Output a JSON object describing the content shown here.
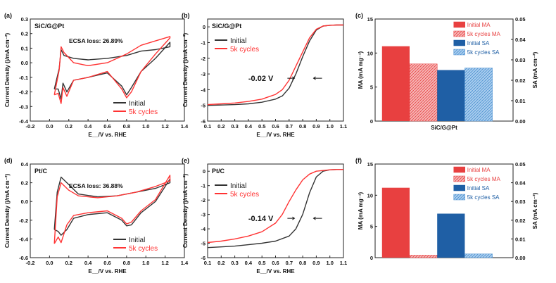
{
  "chart_data": [
    {
      "panel": "(a)",
      "type": "line",
      "sample": "SiC/G@Pt",
      "annotation": "ECSA loss: 26.89%",
      "xlabel": "E__/V vs. RHE",
      "ylabel": "Current Density (j/mA cm⁻²)",
      "xlim": [
        -0.2,
        1.4
      ],
      "ylim": [
        -0.4,
        0.3
      ],
      "xticks": [
        "-0.2",
        "0.0",
        "0.2",
        "0.4",
        "0.6",
        "0.8",
        "1.0",
        "1.2",
        "1.4"
      ],
      "yticks": [
        "-0.4",
        "-0.3",
        "-0.2",
        "-0.1",
        "0.0",
        "0.1",
        "0.2",
        "0.3"
      ],
      "legend": [
        "Initial",
        "5k cycles"
      ],
      "series": [
        {
          "name": "Initial",
          "color": "#333333",
          "x": [
            0.05,
            0.1,
            0.12,
            0.15,
            0.25,
            0.4,
            0.6,
            0.8,
            0.95,
            1.1,
            1.25,
            1.25,
            1.1,
            0.95,
            0.85,
            0.8,
            0.75,
            0.6,
            0.4,
            0.25,
            0.18,
            0.14,
            0.12,
            0.09,
            0.05
          ],
          "y": [
            -0.18,
            -0.04,
            0.09,
            0.05,
            0.03,
            0.02,
            0.03,
            0.05,
            0.08,
            0.09,
            0.11,
            0.14,
            0.03,
            -0.06,
            -0.17,
            -0.22,
            -0.16,
            -0.07,
            -0.1,
            -0.12,
            -0.2,
            -0.14,
            -0.25,
            -0.18,
            -0.18
          ]
        },
        {
          "name": "5k cycles",
          "color": "#ff3333",
          "x": [
            0.05,
            0.1,
            0.12,
            0.15,
            0.25,
            0.4,
            0.6,
            0.8,
            0.95,
            1.1,
            1.25,
            1.25,
            1.1,
            0.95,
            0.85,
            0.8,
            0.75,
            0.6,
            0.4,
            0.25,
            0.18,
            0.14,
            0.12,
            0.09,
            0.05
          ],
          "y": [
            -0.22,
            -0.05,
            0.11,
            0.07,
            0.0,
            -0.02,
            0.0,
            0.06,
            0.12,
            0.15,
            0.18,
            0.17,
            0.06,
            -0.06,
            -0.2,
            -0.24,
            -0.18,
            -0.06,
            -0.1,
            -0.12,
            -0.23,
            -0.17,
            -0.28,
            -0.21,
            -0.22
          ]
        }
      ]
    },
    {
      "panel": "(b)",
      "type": "line",
      "sample": "SiC/G@Pt",
      "annotation": "-0.02 V",
      "xlabel": "E__/V vs. RHE",
      "ylabel": "Current Density (j/mA cm⁻²)",
      "xlim": [
        0.1,
        1.1
      ],
      "ylim": [
        -6,
        0.5
      ],
      "xticks": [
        "0.1",
        "0.2",
        "0.3",
        "0.4",
        "0.5",
        "0.6",
        "0.7",
        "0.8",
        "0.9",
        "1.0",
        "1.1"
      ],
      "yticks": [
        "-6",
        "-5",
        "-4",
        "-3",
        "-2",
        "-1",
        "0"
      ],
      "legend": [
        "Initial",
        "5k cycles"
      ],
      "series": [
        {
          "name": "Initial",
          "color": "#333333",
          "x": [
            0.1,
            0.2,
            0.3,
            0.4,
            0.5,
            0.6,
            0.65,
            0.7,
            0.75,
            0.8,
            0.85,
            0.9,
            0.95,
            1.0,
            1.05,
            1.1
          ],
          "y": [
            -5.0,
            -4.98,
            -4.95,
            -4.9,
            -4.8,
            -4.6,
            -4.4,
            -3.9,
            -3.0,
            -1.9,
            -0.9,
            -0.2,
            0.05,
            0.1,
            0.12,
            0.12
          ]
        },
        {
          "name": "5k cycles",
          "color": "#ff3333",
          "x": [
            0.1,
            0.2,
            0.3,
            0.4,
            0.5,
            0.6,
            0.65,
            0.7,
            0.75,
            0.8,
            0.85,
            0.9,
            0.95,
            1.0,
            1.05,
            1.1
          ],
          "y": [
            -4.95,
            -4.9,
            -4.85,
            -4.75,
            -4.6,
            -4.3,
            -4.0,
            -3.4,
            -2.5,
            -1.6,
            -0.7,
            -0.15,
            0.05,
            0.1,
            0.12,
            0.12
          ]
        }
      ]
    },
    {
      "panel": "(c)",
      "type": "bar",
      "categories": [
        "SiC/G@Pt"
      ],
      "ylabel": "MA (mA mg⁻¹)",
      "y2label": "SA (mA cm⁻²)",
      "ylim": [
        0,
        15
      ],
      "y2lim": [
        0,
        0.05
      ],
      "yticks": [
        "0",
        "5",
        "10",
        "15"
      ],
      "y2ticks": [
        "0.00",
        "0.01",
        "0.02",
        "0.03",
        "0.04",
        "0.05"
      ],
      "series": [
        {
          "name": "Initial MA",
          "axis": "left",
          "value": 11.0,
          "color": "#e84040",
          "pattern": "solid"
        },
        {
          "name": "5k cycles MA",
          "axis": "left",
          "value": 8.4,
          "color": "#e84040",
          "pattern": "hatch"
        },
        {
          "name": "Initial SA",
          "axis": "right",
          "value": 0.025,
          "color": "#1f5fa5",
          "pattern": "solid"
        },
        {
          "name": "5k cycles SA",
          "axis": "right",
          "value": 0.026,
          "color": "#4a8fd0",
          "pattern": "hatch"
        }
      ]
    },
    {
      "panel": "(d)",
      "type": "line",
      "sample": "Pt/C",
      "annotation": "ECSA loss: 36.88%",
      "xlabel": "E__/V vs. RHE",
      "ylabel": "Current Density (j/mA cm⁻²)",
      "xlim": [
        -0.2,
        1.4
      ],
      "ylim": [
        -0.6,
        0.4
      ],
      "xticks": [
        "-0.2",
        "0.0",
        "0.2",
        "0.4",
        "0.6",
        "0.8",
        "1.0",
        "1.2",
        "1.4"
      ],
      "yticks": [
        "-0.6",
        "-0.4",
        "-0.2",
        "0.0",
        "0.2",
        "0.4"
      ],
      "legend": [
        "Initial",
        "5k cycles"
      ],
      "series": [
        {
          "name": "Initial",
          "color": "#333333",
          "x": [
            0.05,
            0.08,
            0.12,
            0.2,
            0.3,
            0.5,
            0.7,
            0.9,
            1.1,
            1.25,
            1.25,
            1.1,
            0.95,
            0.85,
            0.8,
            0.75,
            0.6,
            0.4,
            0.25,
            0.18,
            0.12,
            0.09,
            0.05
          ],
          "y": [
            -0.3,
            0.1,
            0.26,
            0.18,
            0.08,
            0.05,
            0.06,
            0.1,
            0.14,
            0.2,
            0.24,
            0.0,
            -0.12,
            -0.25,
            -0.26,
            -0.2,
            -0.12,
            -0.14,
            -0.18,
            -0.3,
            -0.36,
            -0.32,
            -0.3
          ]
        },
        {
          "name": "5k cycles",
          "color": "#ff3333",
          "x": [
            0.05,
            0.08,
            0.12,
            0.2,
            0.3,
            0.5,
            0.7,
            0.9,
            1.1,
            1.25,
            1.25,
            1.1,
            0.95,
            0.85,
            0.8,
            0.75,
            0.6,
            0.4,
            0.25,
            0.18,
            0.12,
            0.09,
            0.05
          ],
          "y": [
            -0.45,
            0.05,
            0.2,
            0.12,
            0.06,
            0.04,
            0.06,
            0.1,
            0.16,
            0.22,
            0.28,
            0.02,
            -0.1,
            -0.22,
            -0.24,
            -0.18,
            -0.1,
            -0.12,
            -0.15,
            -0.25,
            -0.44,
            -0.38,
            -0.45
          ]
        }
      ]
    },
    {
      "panel": "(e)",
      "type": "line",
      "sample": "Pt/C",
      "annotation": "-0.14 V",
      "xlabel": "E__/V vs. RHE",
      "ylabel": "Current Density (j/mA cm⁻²)",
      "xlim": [
        0.1,
        1.1
      ],
      "ylim": [
        -6,
        0.5
      ],
      "xticks": [
        "0.1",
        "0.2",
        "0.3",
        "0.4",
        "0.5",
        "0.6",
        "0.7",
        "0.8",
        "0.9",
        "1.0",
        "1.1"
      ],
      "yticks": [
        "-6",
        "-5",
        "-4",
        "-3",
        "-2",
        "-1",
        "0"
      ],
      "legend": [
        "Initial",
        "5k cycles"
      ],
      "series": [
        {
          "name": "Initial",
          "color": "#333333",
          "x": [
            0.1,
            0.2,
            0.3,
            0.4,
            0.5,
            0.6,
            0.7,
            0.75,
            0.8,
            0.85,
            0.9,
            0.95,
            1.0,
            1.05,
            1.1
          ],
          "y": [
            -5.3,
            -5.25,
            -5.2,
            -5.1,
            -5.0,
            -4.85,
            -4.5,
            -4.0,
            -3.0,
            -1.5,
            -0.4,
            0.0,
            0.1,
            0.12,
            0.12
          ]
        },
        {
          "name": "5k cycles",
          "color": "#ff3333",
          "x": [
            0.1,
            0.2,
            0.3,
            0.4,
            0.5,
            0.6,
            0.65,
            0.7,
            0.75,
            0.8,
            0.85,
            0.9,
            0.95,
            1.0,
            1.05,
            1.1
          ],
          "y": [
            -4.95,
            -4.85,
            -4.7,
            -4.5,
            -4.2,
            -3.6,
            -3.0,
            -2.1,
            -1.3,
            -0.6,
            -0.2,
            0.0,
            0.05,
            0.1,
            0.12,
            0.12
          ]
        }
      ]
    },
    {
      "panel": "(f)",
      "type": "bar",
      "categories": [
        ""
      ],
      "ylabel": "MA (mA mg⁻¹)",
      "y2label": "SA (mA cm⁻²)",
      "ylim": [
        0,
        15
      ],
      "y2lim": [
        0,
        0.05
      ],
      "yticks": [
        "0",
        "5",
        "10",
        "15"
      ],
      "y2ticks": [
        "0.00",
        "0.01",
        "0.02",
        "0.03",
        "0.04",
        "0.05"
      ],
      "series": [
        {
          "name": "Initial MA",
          "axis": "left",
          "value": 11.2,
          "color": "#e84040",
          "pattern": "solid"
        },
        {
          "name": "5k cycles MA",
          "axis": "left",
          "value": 0.4,
          "color": "#e84040",
          "pattern": "hatch"
        },
        {
          "name": "Initial SA",
          "axis": "right",
          "value": 0.0235,
          "color": "#1f5fa5",
          "pattern": "solid"
        },
        {
          "name": "5k cycles SA",
          "axis": "right",
          "value": 0.002,
          "color": "#4a8fd0",
          "pattern": "hatch"
        }
      ]
    }
  ]
}
